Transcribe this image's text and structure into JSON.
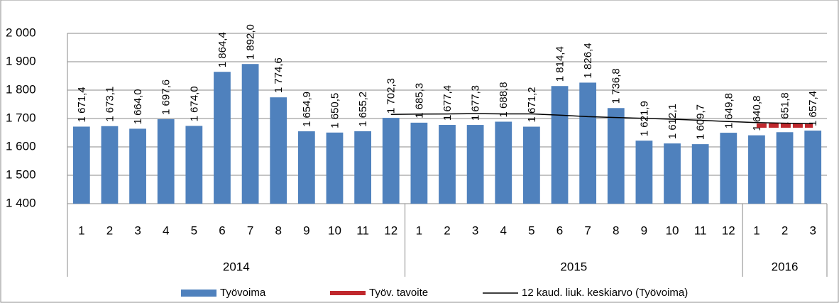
{
  "chart_data": {
    "type": "bar",
    "categories": [
      "1",
      "2",
      "3",
      "4",
      "5",
      "6",
      "7",
      "8",
      "9",
      "10",
      "11",
      "12",
      "1",
      "2",
      "3",
      "4",
      "5",
      "6",
      "7",
      "8",
      "9",
      "10",
      "11",
      "12",
      "1",
      "2",
      "3"
    ],
    "category_groups": [
      {
        "label": "2014",
        "count": 12
      },
      {
        "label": "2015",
        "count": 12
      },
      {
        "label": "2016",
        "count": 3
      }
    ],
    "series": [
      {
        "name": "Työvoima",
        "type": "bar",
        "color": "#4f81bd",
        "values": [
          1671.4,
          1673.1,
          1664.0,
          1697.6,
          1674.0,
          1864.4,
          1892.0,
          1774.6,
          1654.9,
          1650.5,
          1655.2,
          1702.3,
          1685.3,
          1677.4,
          1677.3,
          1688.8,
          1671.2,
          1814.4,
          1826.4,
          1736.8,
          1621.9,
          1612.1,
          1609.7,
          1649.8,
          1640.8,
          1651.8,
          1657.4
        ],
        "value_labels": [
          "1 671,4",
          "1 673,1",
          "1 664,0",
          "1 697,6",
          "1 674,0",
          "1 864,4",
          "1 892,0",
          "1 774,6",
          "1 654,9",
          "1 650,5",
          "1 655,2",
          "1 702,3",
          "1 685,3",
          "1 677,4",
          "1 677,3",
          "1 688,8",
          "1 671,2",
          "1 814,4",
          "1 826,4",
          "1 736,8",
          "1 621,9",
          "1 612,1",
          "1 609,7",
          "1 649,8",
          "1 640,8",
          "1 651,8",
          "1 657,4"
        ]
      },
      {
        "name": "Työv. tavoite",
        "type": "line",
        "color": "#c0282d",
        "values": [
          null,
          null,
          null,
          null,
          null,
          null,
          null,
          null,
          null,
          null,
          null,
          null,
          null,
          null,
          null,
          null,
          null,
          null,
          null,
          null,
          null,
          null,
          null,
          null,
          1675,
          1675,
          1675
        ]
      },
      {
        "name": "12 kaud. liuk. keskiarvo (Työvoima)",
        "type": "line",
        "color": "#000000",
        "values": [
          null,
          null,
          null,
          null,
          null,
          null,
          null,
          null,
          null,
          null,
          null,
          1714.5,
          1715.7,
          1716.0,
          1717.1,
          1716.4,
          1716.2,
          1712.0,
          1706.5,
          1703.4,
          1700.6,
          1697.4,
          1693.6,
          1689.3,
          1685.6,
          1683.4,
          1681.8
        ]
      }
    ],
    "ylim": [
      1400,
      2000
    ],
    "yticks": [
      {
        "value": 1400,
        "label": "1 400"
      },
      {
        "value": 1500,
        "label": "1 500"
      },
      {
        "value": 1600,
        "label": "1 600"
      },
      {
        "value": 1700,
        "label": "1 700"
      },
      {
        "value": 1800,
        "label": "1 800"
      },
      {
        "value": 1900,
        "label": "1 900"
      },
      {
        "value": 2000,
        "label": "2 000"
      }
    ],
    "grid": true,
    "legend": "bottom"
  }
}
